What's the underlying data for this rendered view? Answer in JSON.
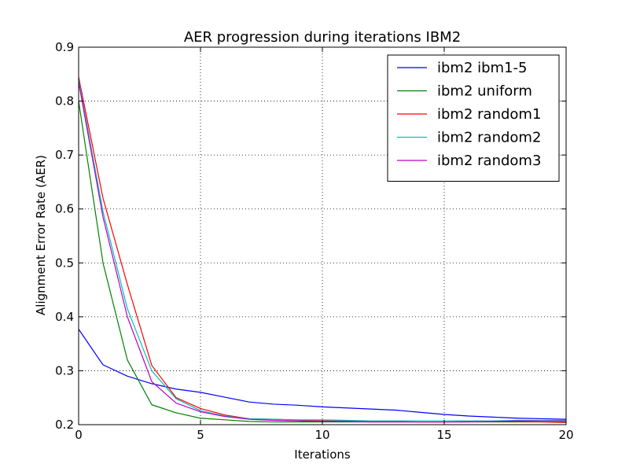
{
  "chart_data": {
    "type": "line",
    "title": "AER progression during iterations IBM2",
    "xlabel": "Iterations",
    "ylabel": "Alignment Error Rate (AER)",
    "xlim": [
      0,
      20
    ],
    "ylim": [
      0.2,
      0.9
    ],
    "xticks": [
      0,
      5,
      10,
      15,
      20
    ],
    "xtick_labels": [
      "0",
      "5",
      "10",
      "15",
      "20"
    ],
    "yticks": [
      0.2,
      0.3,
      0.4,
      0.5,
      0.6,
      0.7,
      0.8,
      0.9
    ],
    "ytick_labels": [
      "0.2",
      "0.3",
      "0.4",
      "0.5",
      "0.6",
      "0.7",
      "0.8",
      "0.9"
    ],
    "grid": true,
    "legend_position": "top-right",
    "x": [
      0,
      1,
      2,
      3,
      4,
      5,
      6,
      7,
      8,
      9,
      10,
      11,
      12,
      13,
      14,
      15,
      16,
      17,
      18,
      19,
      20
    ],
    "series": [
      {
        "name": "ibm2 ibm1-5",
        "color": "#0000ff",
        "values": [
          0.377,
          0.311,
          0.29,
          0.276,
          0.266,
          0.26,
          0.251,
          0.242,
          0.238,
          0.236,
          0.233,
          0.231,
          0.229,
          0.227,
          0.223,
          0.219,
          0.216,
          0.214,
          0.212,
          0.211,
          0.21
        ]
      },
      {
        "name": "ibm2 uniform",
        "color": "#008000",
        "values": [
          0.8,
          0.5,
          0.32,
          0.237,
          0.222,
          0.212,
          0.209,
          0.206,
          0.205,
          0.205,
          0.205,
          0.205,
          0.205,
          0.205,
          0.205,
          0.205,
          0.205,
          0.205,
          0.205,
          0.205,
          0.205
        ]
      },
      {
        "name": "ibm2 random1",
        "color": "#ff0000",
        "values": [
          0.845,
          0.62,
          0.46,
          0.31,
          0.25,
          0.23,
          0.218,
          0.211,
          0.21,
          0.208,
          0.207,
          0.207,
          0.206,
          0.206,
          0.205,
          0.205,
          0.206,
          0.206,
          0.206,
          0.205,
          0.204
        ]
      },
      {
        "name": "ibm2 random2",
        "color": "#00bfbf",
        "values": [
          0.84,
          0.595,
          0.415,
          0.3,
          0.248,
          0.226,
          0.216,
          0.211,
          0.21,
          0.209,
          0.209,
          0.208,
          0.207,
          0.207,
          0.207,
          0.207,
          0.207,
          0.207,
          0.208,
          0.208,
          0.208
        ]
      },
      {
        "name": "ibm2 random3",
        "color": "#bf00bf",
        "values": [
          0.835,
          0.585,
          0.4,
          0.28,
          0.24,
          0.224,
          0.215,
          0.21,
          0.208,
          0.207,
          0.206,
          0.206,
          0.205,
          0.205,
          0.205,
          0.205,
          0.205,
          0.206,
          0.207,
          0.207,
          0.207
        ]
      }
    ]
  }
}
